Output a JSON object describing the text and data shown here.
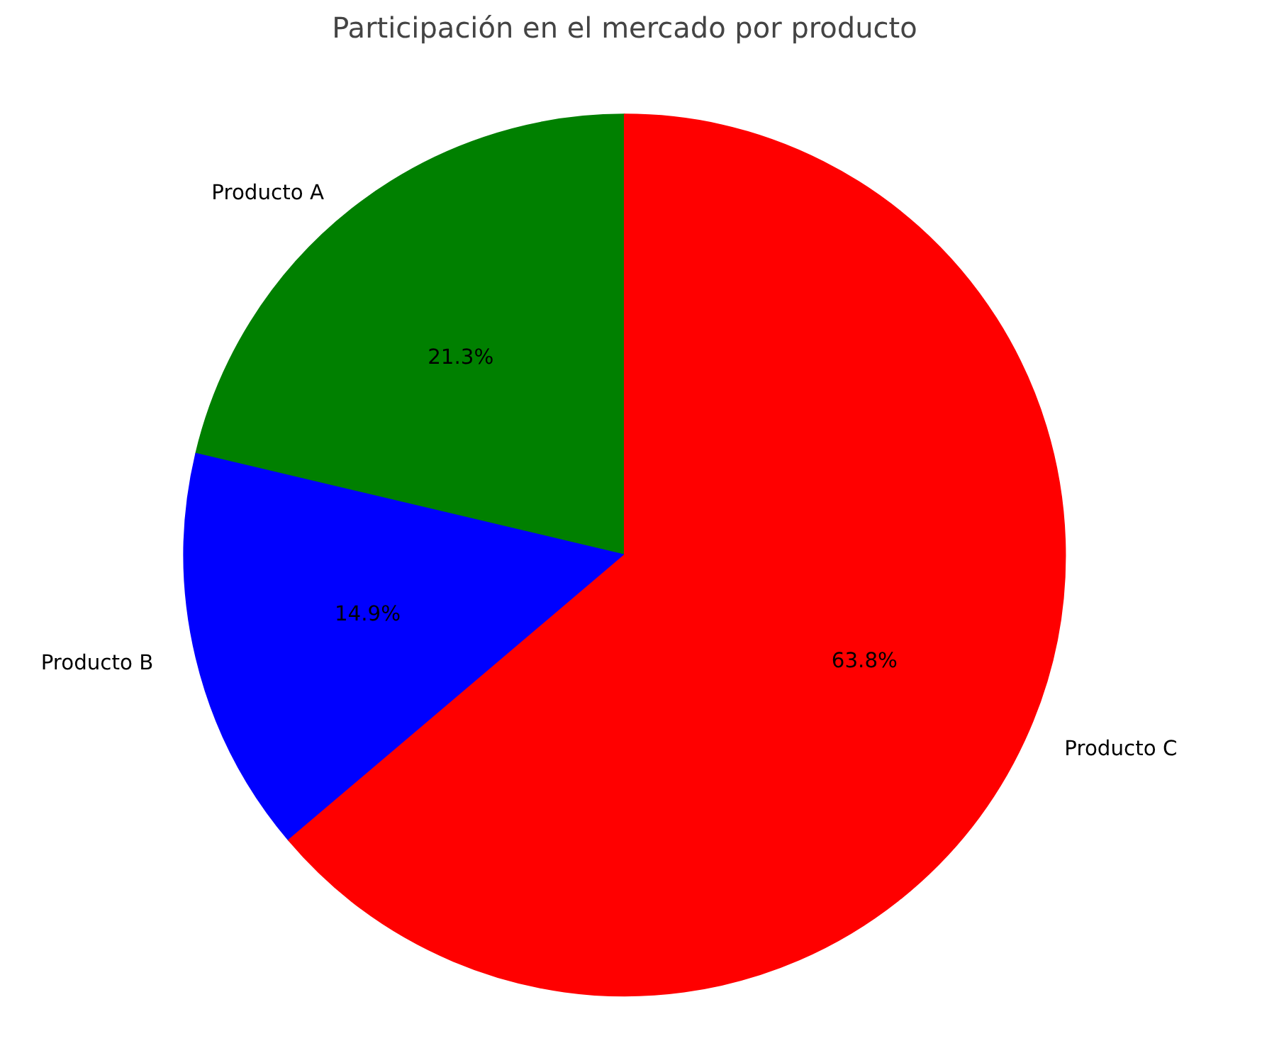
{
  "chart_data": {
    "type": "pie",
    "title": "Participación en el mercado por producto",
    "categories": [
      "Producto A",
      "Producto B",
      "Producto C"
    ],
    "values": [
      21.3,
      14.9,
      63.8
    ],
    "colors": [
      "#008000",
      "#0000ff",
      "#ff0000"
    ],
    "value_labels": [
      "21.3%",
      "14.9%",
      "63.8%"
    ]
  }
}
